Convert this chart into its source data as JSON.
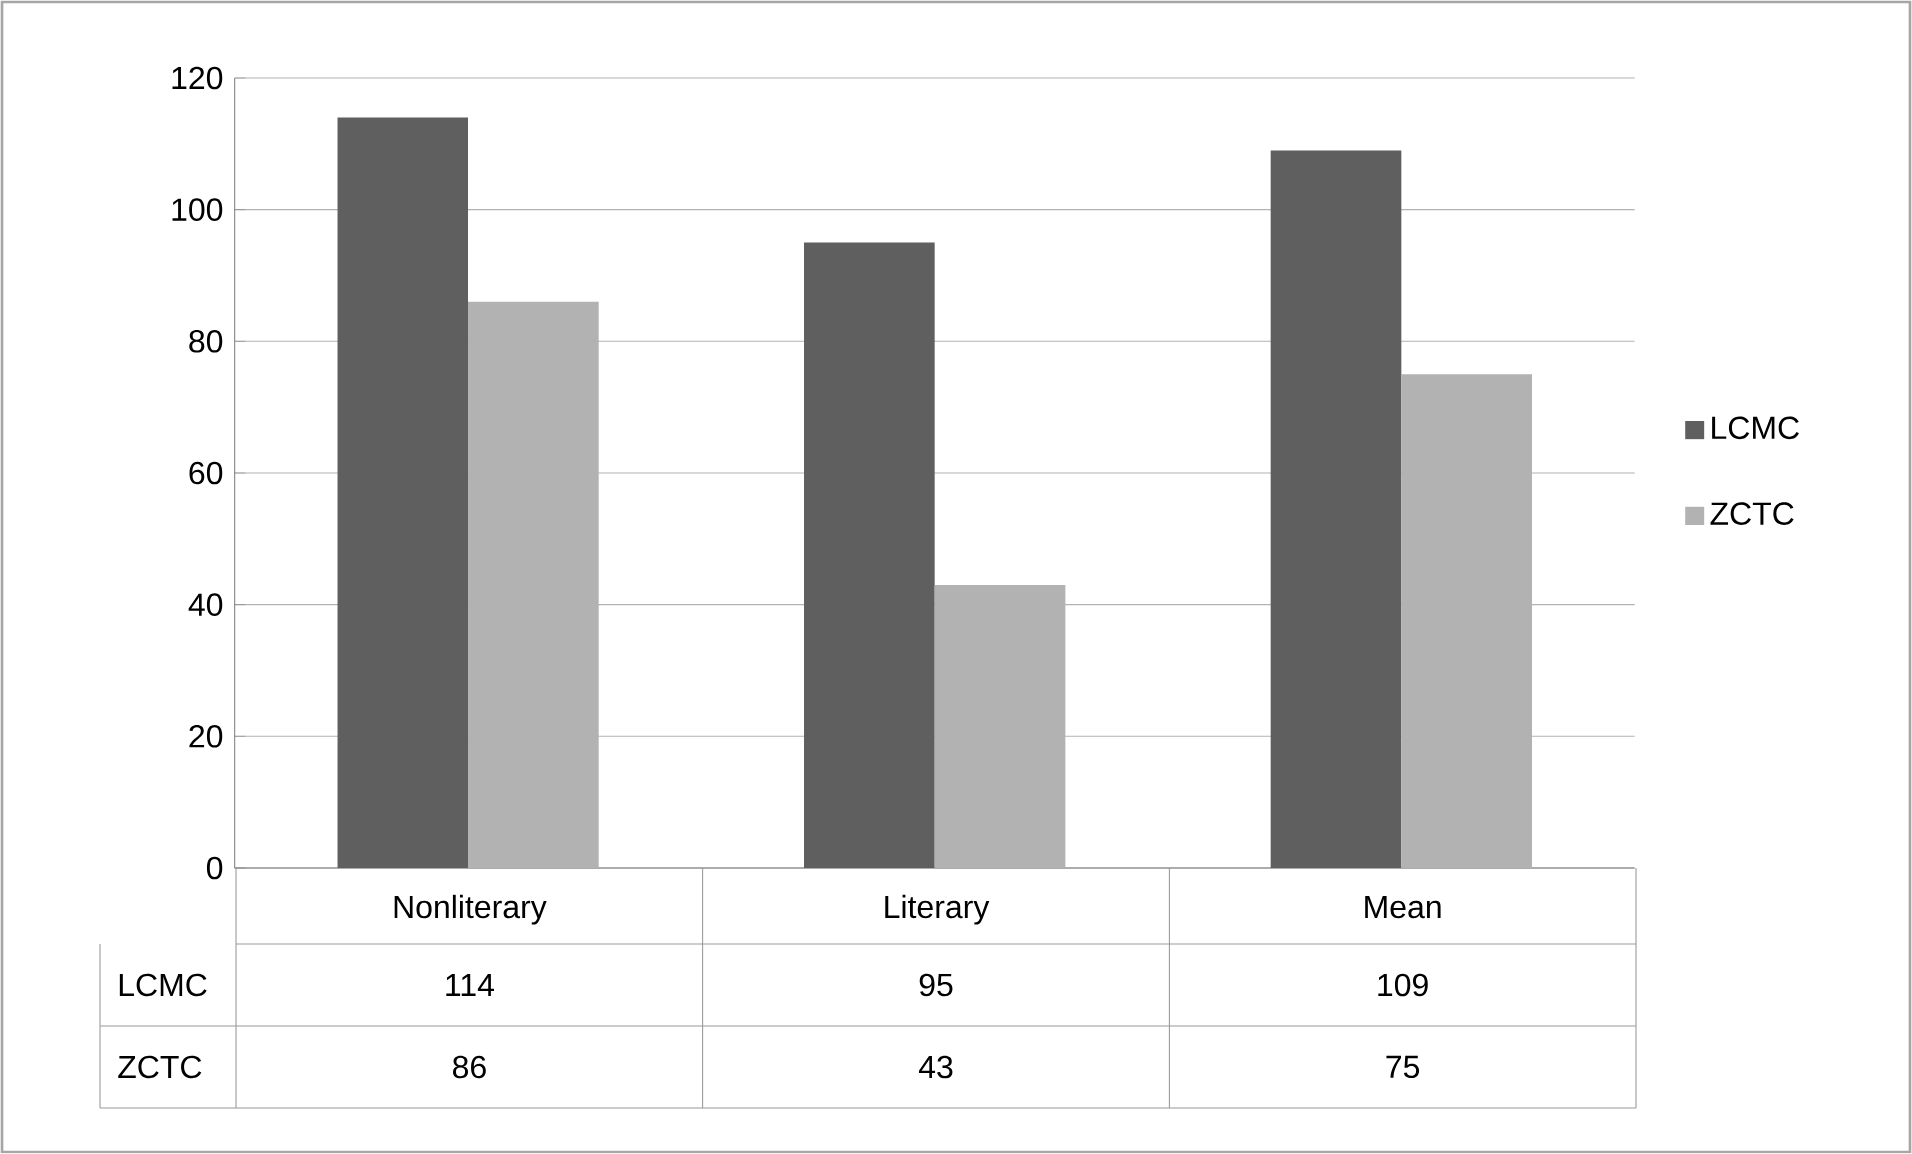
{
  "chart_data": {
    "type": "bar",
    "categories": [
      "Nonliterary",
      "Literary",
      "Mean"
    ],
    "series": [
      {
        "name": "LCMC",
        "color": "#5f5f5f",
        "values": [
          114,
          95,
          109
        ]
      },
      {
        "name": "ZCTC",
        "color": "#b2b2b2",
        "values": [
          86,
          43,
          75
        ]
      }
    ],
    "ylim": [
      0,
      120
    ],
    "yticks": [
      0,
      20,
      40,
      60,
      80,
      100,
      120
    ],
    "grid": "y",
    "legend": "right",
    "data_labels": true
  }
}
